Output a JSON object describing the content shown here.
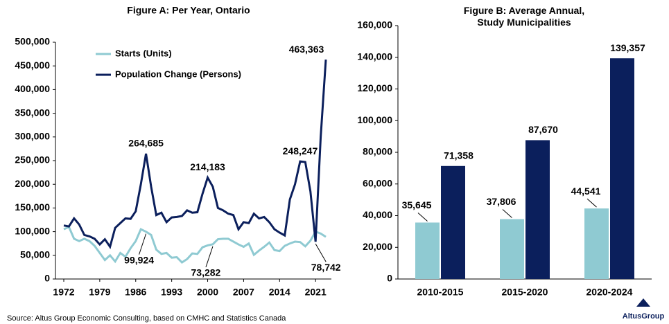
{
  "chart_data": [
    {
      "type": "line",
      "title": "Figure A: Per Year, Ontario",
      "x": [
        1972,
        1973,
        1974,
        1975,
        1976,
        1977,
        1978,
        1979,
        1980,
        1981,
        1982,
        1983,
        1984,
        1985,
        1986,
        1987,
        1988,
        1989,
        1990,
        1991,
        1992,
        1993,
        1994,
        1995,
        1996,
        1997,
        1998,
        1999,
        2000,
        2001,
        2002,
        2003,
        2004,
        2005,
        2006,
        2007,
        2008,
        2009,
        2010,
        2011,
        2012,
        2013,
        2014,
        2015,
        2016,
        2017,
        2018,
        2019,
        2020,
        2021,
        2022,
        2023
      ],
      "xlim": [
        1972,
        2023
      ],
      "xticks": [
        1972,
        1979,
        1986,
        1993,
        2000,
        2007,
        2014,
        2021
      ],
      "ylim": [
        0,
        500000
      ],
      "yticks": [
        0,
        {
          "value": 50000,
          "label": "50,000"
        },
        {
          "value": 100000,
          "label": "100,000"
        },
        {
          "value": 150000,
          "label": "150,000"
        },
        {
          "value": 200000,
          "label": "200,000"
        },
        {
          "value": 250000,
          "label": "250,000"
        },
        {
          "value": 300000,
          "label": "300,000"
        },
        {
          "value": 350000,
          "label": "350,000"
        },
        {
          "value": 400000,
          "label": "400,000"
        },
        {
          "value": 450000,
          "label": "450,000"
        },
        {
          "value": 500000,
          "label": "500,000"
        }
      ],
      "legend": "top-left",
      "series": [
        {
          "name": "Starts (Units)",
          "color": "#8fcad2",
          "values": [
            105000,
            110000,
            85000,
            80000,
            85000,
            80000,
            70000,
            55000,
            40000,
            50000,
            37000,
            55000,
            47000,
            65000,
            80000,
            105000,
            99924,
            93000,
            62000,
            53000,
            55000,
            45000,
            46000,
            35000,
            42000,
            54000,
            53000,
            67000,
            71000,
            73282,
            84000,
            85000,
            85000,
            79000,
            73000,
            68000,
            75000,
            51000,
            60000,
            68000,
            77000,
            61000,
            59000,
            70000,
            75000,
            79000,
            78000,
            69000,
            81000,
            100000,
            96000,
            89000
          ],
          "value_labels": [
            null,
            null,
            null,
            null,
            null,
            null,
            null,
            null,
            null,
            null,
            null,
            null,
            null,
            null,
            null,
            null,
            "99,924",
            null,
            null,
            null,
            null,
            null,
            null,
            null,
            null,
            null,
            null,
            null,
            null,
            "73,282",
            null,
            null,
            null,
            null,
            null,
            null,
            null,
            null,
            null,
            null,
            null,
            null,
            null,
            null,
            null,
            null,
            null,
            null,
            null,
            null,
            null,
            null
          ]
        },
        {
          "name": "Population Change (Persons)",
          "color": "#0b1f5c",
          "values": [
            113000,
            111000,
            128000,
            115000,
            93000,
            90000,
            85000,
            73000,
            84000,
            68000,
            108000,
            118000,
            128000,
            127000,
            143000,
            200000,
            264685,
            195000,
            135000,
            140000,
            120000,
            130000,
            131000,
            133000,
            145000,
            140000,
            141000,
            180000,
            214183,
            195000,
            150000,
            145000,
            138000,
            135000,
            105000,
            120000,
            118000,
            138000,
            128000,
            131000,
            120000,
            105000,
            98000,
            92000,
            168000,
            200000,
            248247,
            247000,
            185000,
            78742,
            300000,
            463363
          ],
          "value_labels": [
            null,
            null,
            null,
            null,
            null,
            null,
            null,
            null,
            null,
            null,
            null,
            null,
            null,
            null,
            null,
            null,
            "264,685",
            null,
            null,
            null,
            null,
            null,
            null,
            null,
            null,
            null,
            null,
            null,
            "214,183",
            null,
            null,
            null,
            null,
            null,
            null,
            null,
            null,
            null,
            null,
            null,
            null,
            null,
            null,
            null,
            null,
            null,
            "248,247",
            null,
            null,
            "78,742",
            null,
            "463,363"
          ]
        }
      ]
    },
    {
      "type": "bar",
      "title": "Figure B: Average Annual, Study Municipalities",
      "categories": [
        "2010-2015",
        "2015-2020",
        "2020-2024"
      ],
      "ylim": [
        0,
        160000
      ],
      "yticks": [
        0,
        {
          "value": 20000,
          "label": "20,000"
        },
        {
          "value": 40000,
          "label": "40,000"
        },
        {
          "value": 60000,
          "label": "60,000"
        },
        {
          "value": 80000,
          "label": "80,000"
        },
        {
          "value": 100000,
          "label": "100,000"
        },
        {
          "value": 120000,
          "label": "120,000"
        },
        {
          "value": 140000,
          "label": "140,000"
        },
        {
          "value": 160000,
          "label": "160,000"
        }
      ],
      "series": [
        {
          "color": "#8fcad2",
          "values": [
            35645,
            37806,
            44541
          ],
          "value_labels": [
            "35,645",
            "37,806",
            "44,541"
          ]
        },
        {
          "color": "#0b1f5c",
          "values": [
            71358,
            87670,
            139357
          ],
          "value_labels": [
            "71,358",
            "87,670",
            "139,357"
          ]
        }
      ]
    }
  ],
  "source": "Source:  Altus Group Economic Consulting, based on CMHC and Statistics Canada",
  "logo": "AltusGroup"
}
